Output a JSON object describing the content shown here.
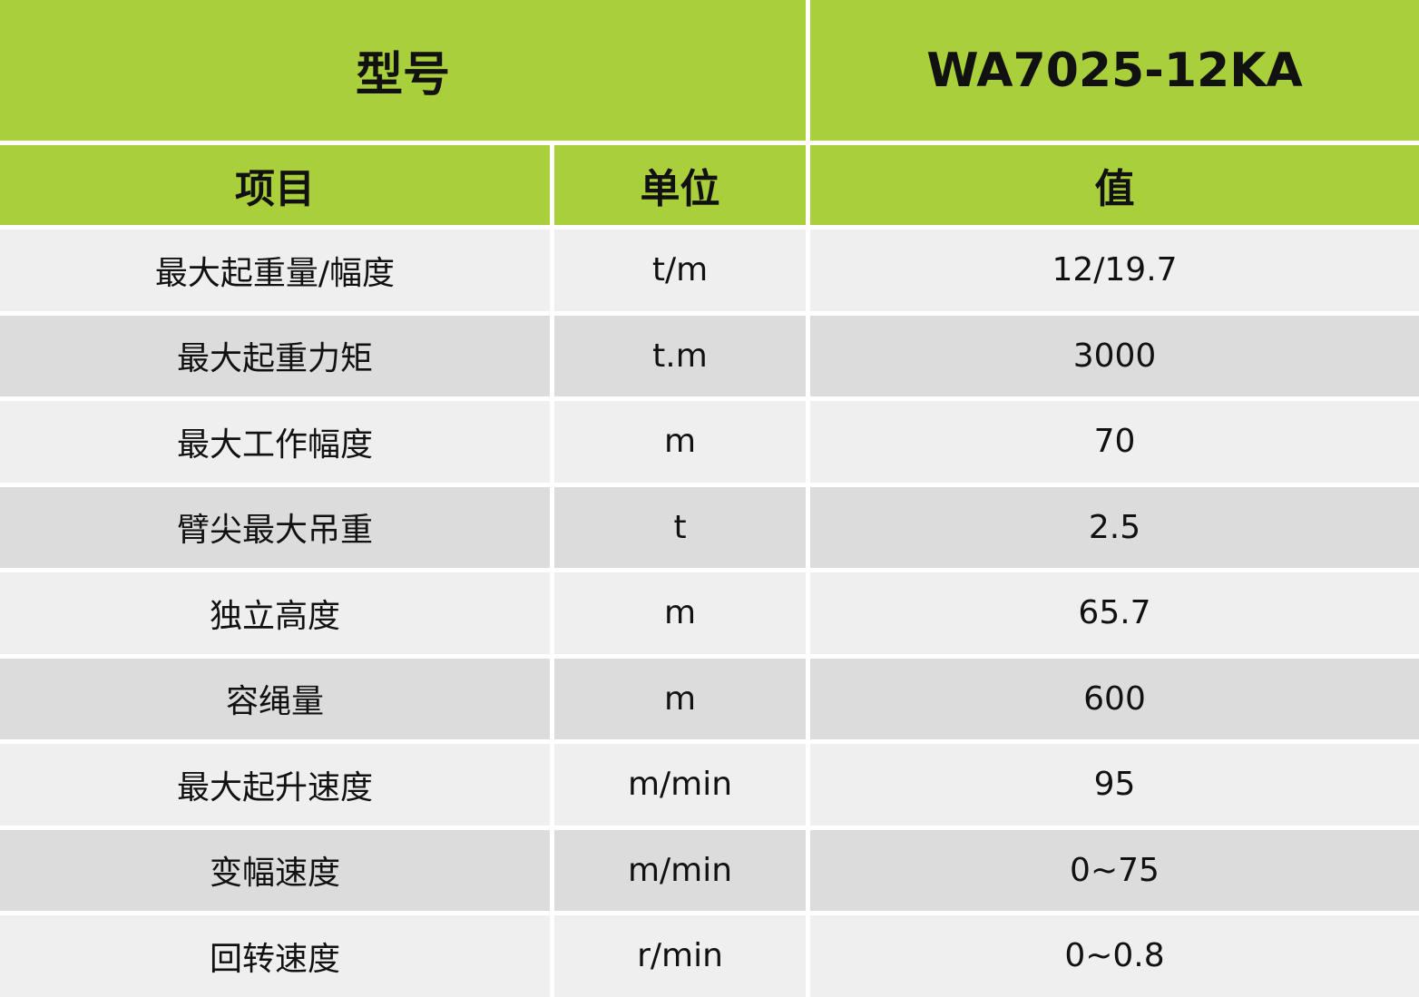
{
  "header": {
    "model_label": "型号",
    "model": "WA7025-12KA"
  },
  "table": {
    "columns": [
      "项目",
      "单位",
      "值"
    ],
    "rows": [
      [
        "最大起重量/幅度",
        "t/m",
        "12/19.7"
      ],
      [
        "最大起重力矩",
        "t.m",
        "3000"
      ],
      [
        "最大工作幅度",
        "m",
        "70"
      ],
      [
        "臂尖最大吊重",
        "t",
        "2.5"
      ],
      [
        "独立高度",
        "m",
        "65.7"
      ],
      [
        "容绳量",
        "m",
        "600"
      ],
      [
        "最大起升速度",
        "m/min",
        "95"
      ],
      [
        "变幅速度",
        "m/min",
        "0~75"
      ],
      [
        "回转速度",
        "r/min",
        "0~0.8"
      ]
    ]
  }
}
